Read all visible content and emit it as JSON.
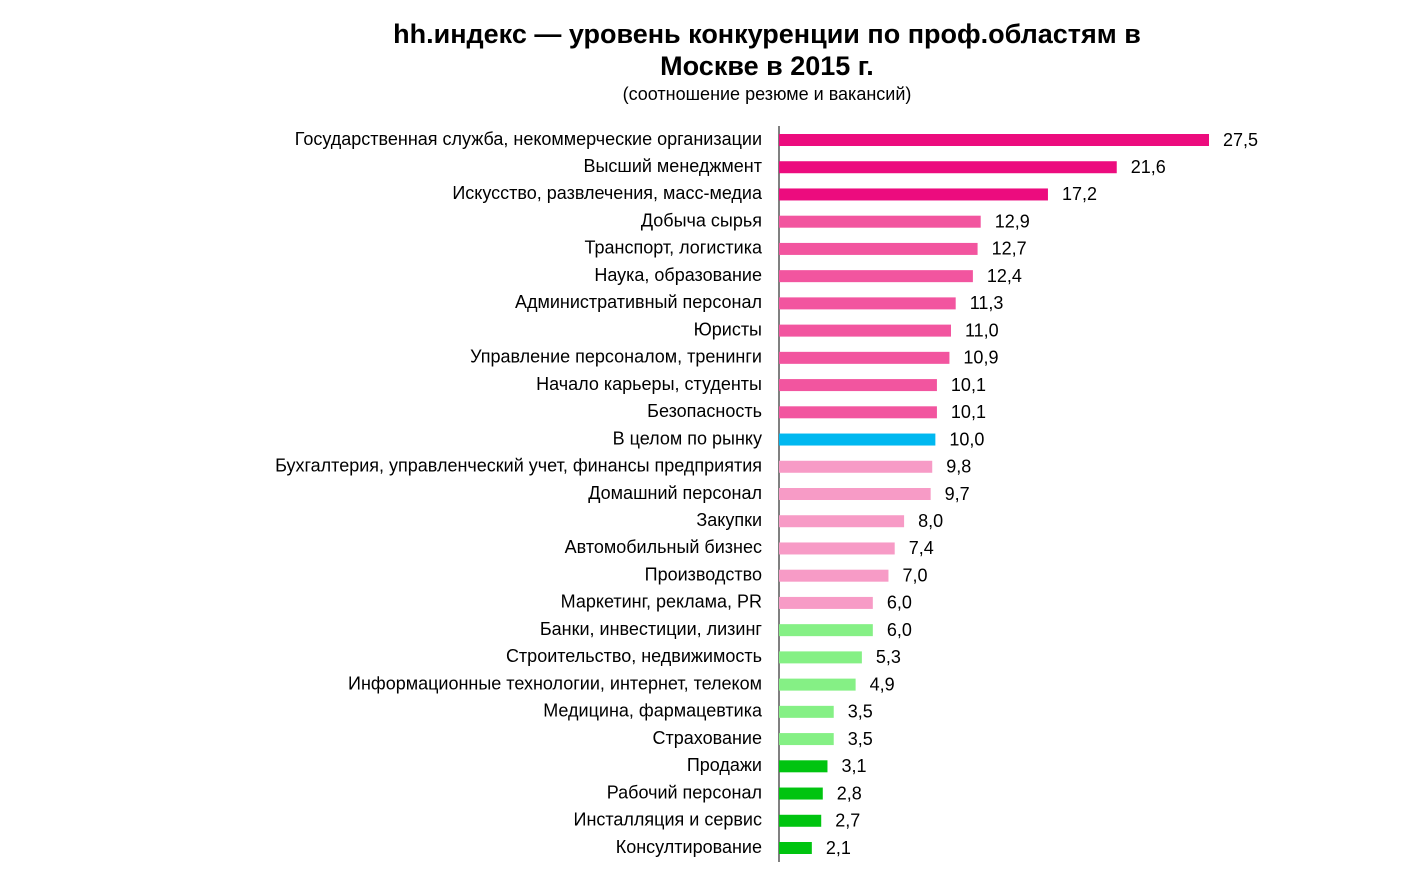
{
  "chart_data": {
    "type": "bar",
    "orientation": "horizontal",
    "title": "hh.индекс — уровень конкуренции по проф.областям в\nМоскве в 2015 г.",
    "subtitle": "(соотношение резюме и вакансий)",
    "categories": [
      "Государственная служба, некоммерческие организации",
      "Высший менеджмент",
      "Искусство, развлечения, масс-медиа",
      "Добыча сырья",
      "Транспорт, логистика",
      "Наука, образование",
      "Административный персонал",
      "Юристы",
      "Управление персоналом, тренинги",
      "Начало карьеры, студенты",
      "Безопасность",
      "В целом по рынку",
      "Бухгалтерия, управленческий учет, финансы предприятия",
      "Домашний персонал",
      "Закупки",
      "Автомобильный бизнес",
      "Производство",
      "Маркетинг, реклама, PR",
      "Банки, инвестиции, лизинг",
      "Строительство, недвижимость",
      "Информационные технологии, интернет, телеком",
      "Медицина, фармацевтика",
      "Страхование",
      "Продажи",
      "Рабочий персонал",
      "Инсталляция и сервис",
      "Консултирование"
    ],
    "values": [
      27.5,
      21.6,
      17.2,
      12.9,
      12.7,
      12.4,
      11.3,
      11.0,
      10.9,
      10.1,
      10.1,
      10.0,
      9.8,
      9.7,
      8.0,
      7.4,
      7.0,
      6.0,
      6.0,
      5.3,
      4.9,
      3.5,
      3.5,
      3.1,
      2.8,
      2.7,
      2.1
    ],
    "value_labels": [
      "27,5",
      "21,6",
      "17,2",
      "12,9",
      "12,7",
      "12,4",
      "11,3",
      "11,0",
      "10,9",
      "10,1",
      "10,1",
      "10,0",
      "9,8",
      "9,7",
      "8,0",
      "7,4",
      "7,0",
      "6,0",
      "6,0",
      "5,3",
      "4,9",
      "3,5",
      "3,5",
      "3,1",
      "2,8",
      "2,7",
      "2,1"
    ],
    "colors": [
      "#ec0c7e",
      "#ec0c7e",
      "#ec0c7e",
      "#f2559f",
      "#f2559f",
      "#f2559f",
      "#f2559f",
      "#f2559f",
      "#f2559f",
      "#f2559f",
      "#f2559f",
      "#00b8f0",
      "#f79bc6",
      "#f79bc6",
      "#f79bc6",
      "#f79bc6",
      "#f79bc6",
      "#f79bc6",
      "#85f085",
      "#85f085",
      "#85f085",
      "#85f085",
      "#85f085",
      "#00c410",
      "#00c410",
      "#00c410",
      "#00c410"
    ]
  }
}
